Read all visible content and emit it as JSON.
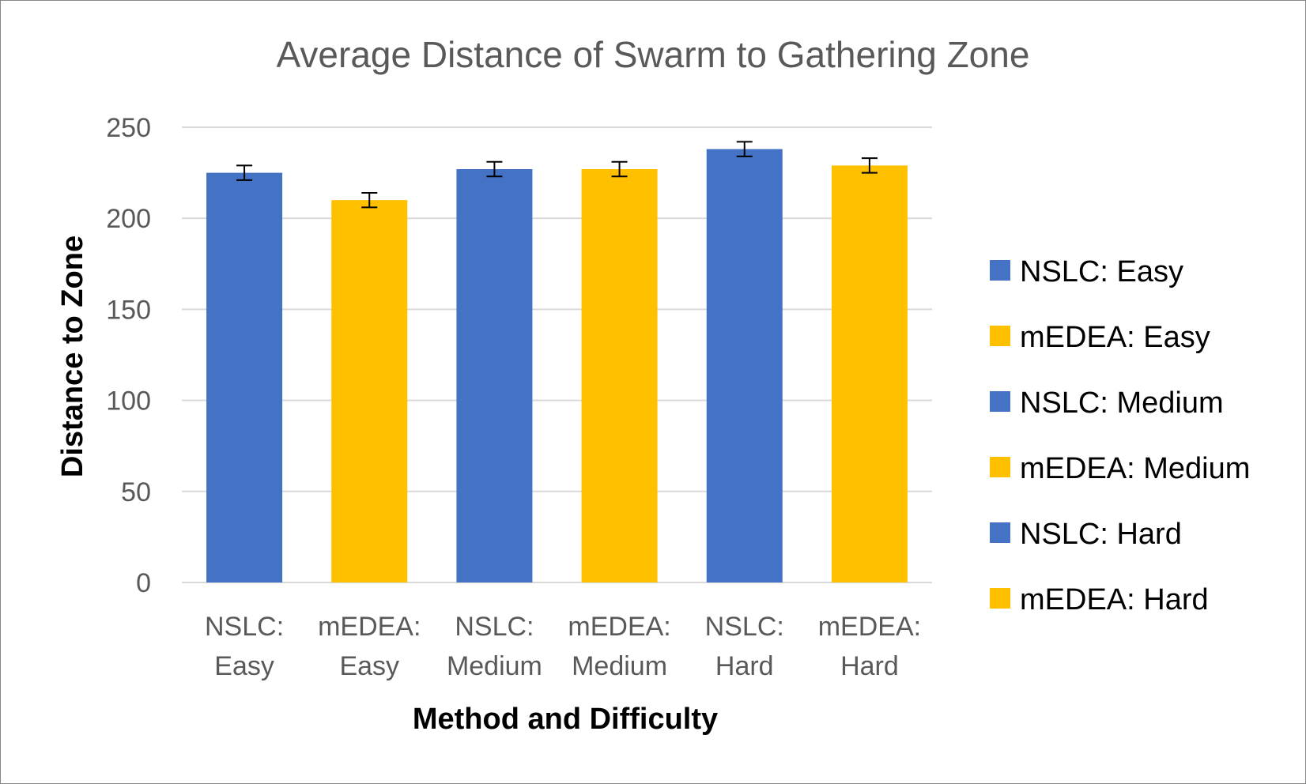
{
  "chart_data": {
    "type": "bar",
    "title": "Average Distance of Swarm to Gathering Zone",
    "xlabel": "Method and Difficulty",
    "ylabel": "Distance to Zone",
    "ylim": [
      0,
      250
    ],
    "yticks": [
      "0",
      "50",
      "100",
      "150",
      "200",
      "250"
    ],
    "grid": true,
    "legend_position": "right",
    "categories": [
      [
        "NSLC:",
        "Easy"
      ],
      [
        "mEDEA:",
        "Easy"
      ],
      [
        "NSLC:",
        "Medium"
      ],
      [
        "mEDEA:",
        "Medium"
      ],
      [
        "NSLC:",
        "Hard"
      ],
      [
        "mEDEA:",
        "Hard"
      ]
    ],
    "series": [
      {
        "name": "NSLC: Easy",
        "value": 225,
        "error": 4,
        "color": "#4472C4"
      },
      {
        "name": "mEDEA: Easy",
        "value": 210,
        "error": 4,
        "color": "#FFC000"
      },
      {
        "name": "NSLC: Medium",
        "value": 227,
        "error": 4,
        "color": "#4472C4"
      },
      {
        "name": "mEDEA: Medium",
        "value": 227,
        "error": 4,
        "color": "#FFC000"
      },
      {
        "name": "NSLC: Hard",
        "value": 238,
        "error": 4,
        "color": "#4472C4"
      },
      {
        "name": "mEDEA: Hard",
        "value": 229,
        "error": 4,
        "color": "#FFC000"
      }
    ]
  }
}
